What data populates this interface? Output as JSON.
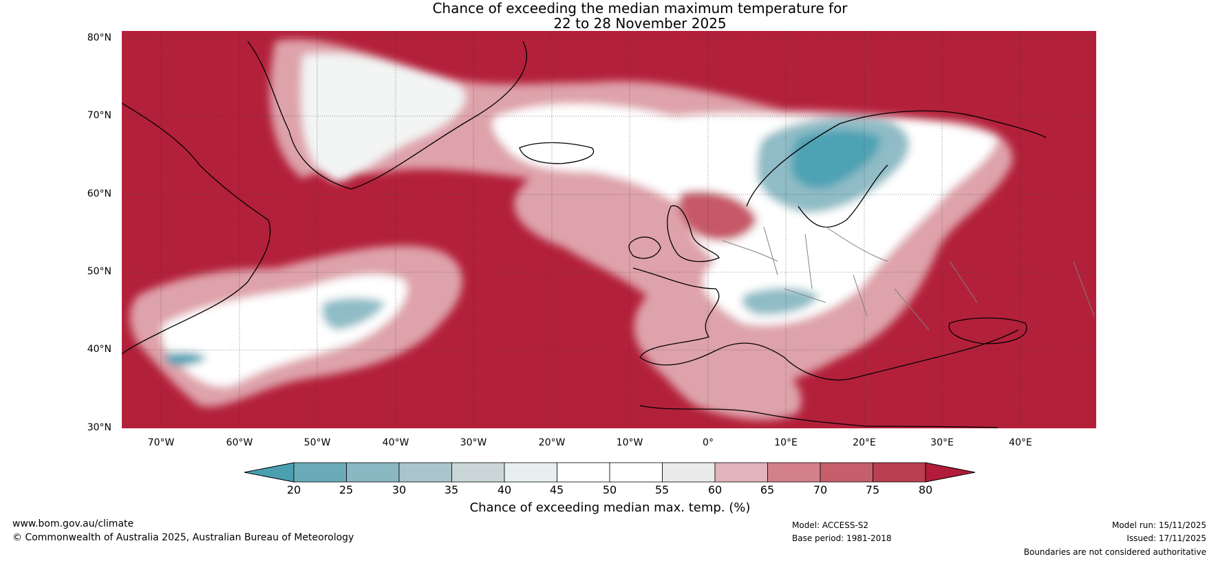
{
  "title": {
    "line1": "Chance of exceeding the median maximum temperature for",
    "line2": "22 to 28 November 2025"
  },
  "map": {
    "lat_labels": [
      "80°N",
      "70°N",
      "60°N",
      "50°N",
      "40°N",
      "30°N"
    ],
    "lon_labels": [
      "70°W",
      "60°W",
      "50°W",
      "40°W",
      "30°W",
      "20°W",
      "10°W",
      "0°",
      "10°E",
      "20°E",
      "30°E",
      "40°E"
    ],
    "colors": {
      "ocean_red": "#b3203a",
      "red_mid": "#c75868",
      "pink": "#dea2aa",
      "white": "#ffffff",
      "light_grey": "#e9ecec",
      "teal_light": "#8fbcc6",
      "teal": "#4ea2b4",
      "coast": "#000000",
      "border": "#808080"
    }
  },
  "colorbar": {
    "ticks": [
      "20",
      "25",
      "30",
      "35",
      "40",
      "45",
      "50",
      "55",
      "60",
      "65",
      "70",
      "75",
      "80"
    ],
    "colors": [
      "#4aa0b1",
      "#6aabb9",
      "#89b7c2",
      "#a9c5cb",
      "#cad6d8",
      "#e7eff1",
      "#ffffff",
      "#ffffff",
      "#ebeaea",
      "#e0b4ba",
      "#d4808b",
      "#c65f6c",
      "#ba3f50",
      "#b21c3a"
    ],
    "label": "Chance of exceeding median max. temp. (%)"
  },
  "footer": {
    "website": "www.bom.gov.au/climate",
    "copyright": "© Commonwealth of Australia 2025, Australian Bureau of Meteorology",
    "model": "Model: ACCESS-S2",
    "base_period": "Base period: 1981-2018",
    "model_run": "Model run: 15/11/2025",
    "issued": "Issued: 17/11/2025",
    "disclaimer": "Boundaries are not considered authoritative"
  }
}
